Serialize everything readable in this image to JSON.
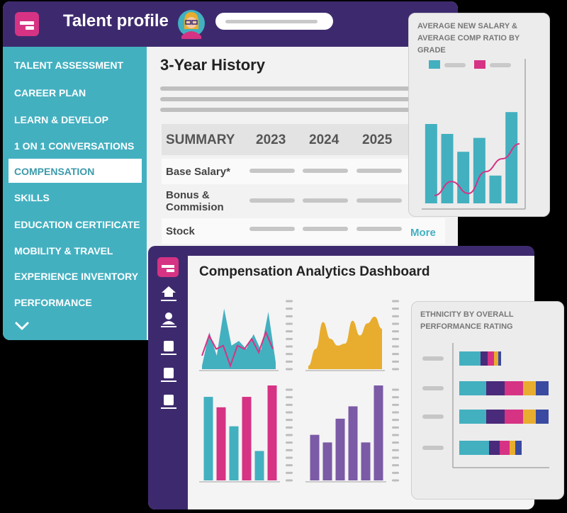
{
  "profile": {
    "title": "Talent profile",
    "nav": [
      "TALENT ASSESSMENT",
      "CAREER PLAN",
      "LEARN & DEVELOP",
      "1 ON 1 CONVERSATIONS",
      "COMPENSATION",
      "SKILLS",
      "EDUCATION CERTIFICATE",
      "MOBILITY & TRAVEL",
      "EXPERIENCE INVENTORY",
      "PERFORMANCE"
    ],
    "active_nav": "COMPENSATION",
    "history_title": "3-Year History",
    "summary": {
      "header": "SUMMARY",
      "years": [
        "2023",
        "2024",
        "2025"
      ],
      "rows": [
        "Base Salary*",
        "Bonus & Commision",
        "Stock"
      ],
      "more": "More"
    }
  },
  "salary_card": {
    "title": "AVERAGE NEW SALARY & AVERAGE COMP RATIO BY GRADE",
    "colors": {
      "bar": "#43b0c0",
      "line": "#d63384"
    }
  },
  "dashboard": {
    "title": "Compensation Analytics Dashboard",
    "side_icons": [
      "home-icon",
      "user-icon",
      "document-icon",
      "document-icon",
      "document-icon"
    ]
  },
  "ethnicity_card": {
    "title": "ETHNICITY BY OVERALL PERFORMANCE RATING",
    "colors": [
      "#43b0c0",
      "#4a2a7a",
      "#d63384",
      "#e8ad2e",
      "#3a4aa0"
    ]
  },
  "chart_data": [
    {
      "type": "bar",
      "title": "AVERAGE NEW SALARY & AVERAGE COMP RATIO BY GRADE",
      "series": [
        {
          "values": [
            80,
            70,
            52,
            66,
            28,
            92
          ]
        },
        {
          "type": "line",
          "values": [
            8,
            22,
            10,
            32,
            45,
            60
          ]
        }
      ],
      "ylim": [
        0,
        100
      ]
    },
    {
      "type": "area",
      "series": [
        {
          "values": [
            5,
            55,
            20,
            90,
            35,
            42,
            30,
            52,
            28,
            85,
            10
          ]
        },
        {
          "type": "line",
          "values": [
            20,
            50,
            30,
            35,
            5,
            35,
            30,
            45,
            25,
            55,
            30
          ]
        }
      ],
      "ylim": [
        0,
        100
      ]
    },
    {
      "type": "area",
      "series": [
        {
          "values": [
            5,
            30,
            70,
            45,
            35,
            38,
            72,
            50,
            68,
            78,
            60
          ]
        }
      ],
      "ylim": [
        0,
        100
      ]
    },
    {
      "type": "bar",
      "series": [
        {
          "values": [
            88,
            77,
            57,
            88,
            31,
            100
          ]
        }
      ],
      "colors": [
        "#43b0c0",
        "#d63384",
        "#43b0c0",
        "#d63384",
        "#43b0c0",
        "#d63384"
      ],
      "ylim": [
        0,
        100
      ]
    },
    {
      "type": "bar",
      "series": [
        {
          "values": [
            48,
            40,
            65,
            78,
            40,
            100
          ]
        }
      ],
      "colors": [
        "#7b5aa6"
      ],
      "ylim": [
        0,
        100
      ]
    },
    {
      "type": "bar",
      "title": "ETHNICITY BY OVERALL PERFORMANCE RATING",
      "orientation": "horizontal",
      "series": [
        {
          "values": [
            30,
            38,
            38,
            42
          ]
        },
        {
          "values": [
            10,
            26,
            26,
            15
          ]
        },
        {
          "values": [
            9,
            26,
            26,
            14
          ]
        },
        {
          "values": [
            6,
            18,
            18,
            8
          ]
        },
        {
          "values": [
            4,
            18,
            18,
            9
          ]
        }
      ],
      "xlim": [
        0,
        130
      ]
    }
  ]
}
